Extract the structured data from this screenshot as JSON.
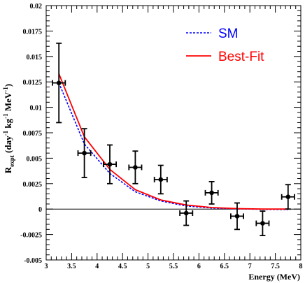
{
  "chart_data": {
    "type": "scatter",
    "xlabel": "Energy (MeV)",
    "ylabel": {
      "main": "R",
      "sub": "expt",
      "units_prefix": " (day",
      "exp1": "-1",
      "units_mid": " kg",
      "exp2": "-1",
      "units_mid2": " MeV",
      "exp3": "-1",
      "units_suffix": ")"
    },
    "xlim": [
      3,
      8
    ],
    "ylim": [
      -0.005,
      0.02
    ],
    "x_ticks": [
      "3",
      "3.5",
      "4",
      "4.5",
      "5",
      "5.5",
      "6",
      "6.5",
      "7",
      "7.5",
      "8"
    ],
    "y_ticks": [
      "-0.005",
      "-0.0025",
      "0",
      "0.0025",
      "0.005",
      "0.0075",
      "0.01",
      "0.0125",
      "0.015",
      "0.0175",
      "0.02"
    ],
    "grid": false,
    "legend_position": "top-right",
    "points": [
      {
        "x": 3.25,
        "y": 0.0124,
        "xerr": 0.125,
        "yerr": 0.0039
      },
      {
        "x": 3.75,
        "y": 0.0055,
        "xerr": 0.125,
        "yerr": 0.0024
      },
      {
        "x": 4.25,
        "y": 0.0044,
        "xerr": 0.125,
        "yerr": 0.0019
      },
      {
        "x": 4.75,
        "y": 0.0041,
        "xerr": 0.125,
        "yerr": 0.0016
      },
      {
        "x": 5.25,
        "y": 0.0029,
        "xerr": 0.125,
        "yerr": 0.0014
      },
      {
        "x": 5.75,
        "y": -0.0004,
        "xerr": 0.125,
        "yerr": 0.0012
      },
      {
        "x": 6.25,
        "y": 0.0016,
        "xerr": 0.125,
        "yerr": 0.0011
      },
      {
        "x": 6.75,
        "y": -0.0007,
        "xerr": 0.125,
        "yerr": 0.0013
      },
      {
        "x": 7.25,
        "y": -0.0014,
        "xerr": 0.125,
        "yerr": 0.0012
      },
      {
        "x": 7.75,
        "y": 0.0012,
        "xerr": 0.125,
        "yerr": 0.0012
      }
    ],
    "series": [
      {
        "name": "SM",
        "color": "#0000ff",
        "style": "dashed",
        "x": [
          3.25,
          3.75,
          4.25,
          4.75,
          5.25,
          5.75,
          6.25,
          6.75,
          7.25,
          7.75
        ],
        "y": [
          0.0124,
          0.0064,
          0.0035,
          0.0017,
          0.0008,
          0.0003,
          0.0001,
          3e-05,
          -3e-05,
          -5e-05
        ]
      },
      {
        "name": "Best-Fit",
        "color": "#ff0000",
        "style": "solid",
        "x": [
          3.25,
          3.75,
          4.25,
          4.75,
          5.25,
          5.75,
          6.25,
          6.75,
          7.25,
          7.75
        ],
        "y": [
          0.0133,
          0.0071,
          0.0039,
          0.0019,
          0.0009,
          0.0004,
          0.00015,
          5e-05,
          0.0,
          0.0
        ]
      }
    ]
  }
}
